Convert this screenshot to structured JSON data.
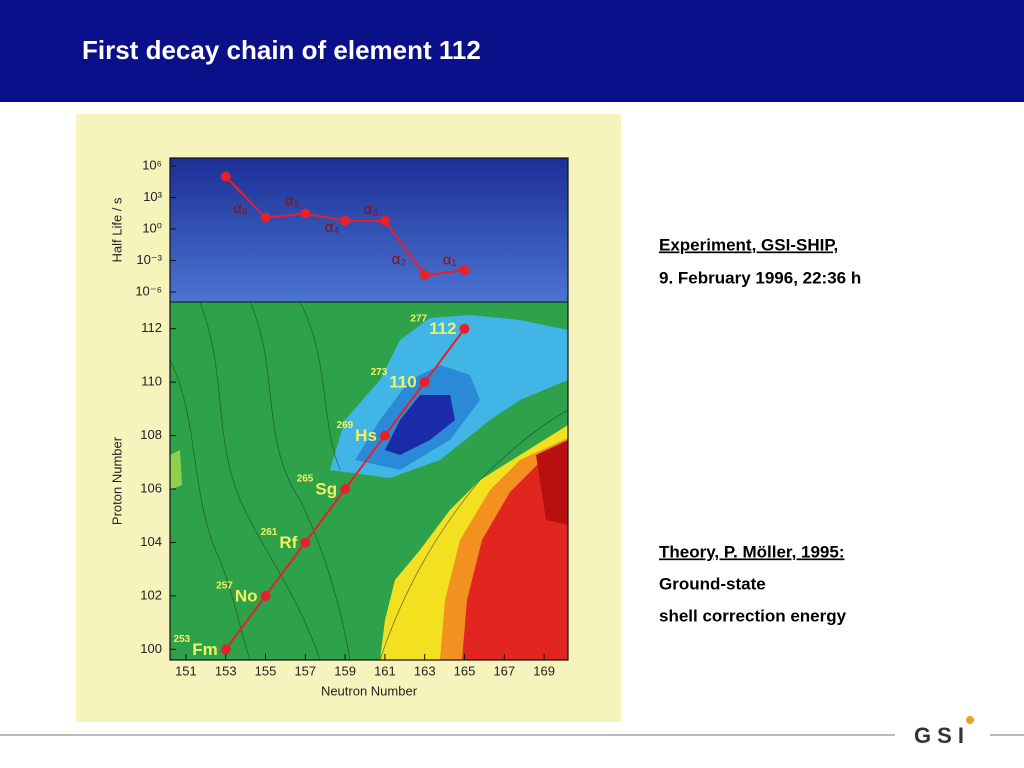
{
  "header": {
    "title": "First decay chain of element 112"
  },
  "chart_data": [
    {
      "type": "line",
      "y_label": "Half Life / s",
      "log_y": true,
      "ylim": [
        1.1e-07,
        5800000
      ],
      "yticks": [
        {
          "value": 1000000,
          "label": "10⁶"
        },
        {
          "value": 1000,
          "label": "10³"
        },
        {
          "value": 1,
          "label": "10⁰"
        },
        {
          "value": 0.001,
          "label": "10⁻³"
        },
        {
          "value": 1e-06,
          "label": "10⁻⁶"
        }
      ],
      "xlim": [
        150.2,
        170.2
      ],
      "x": [
        153,
        155,
        157,
        159,
        161,
        163,
        165
      ],
      "series": [
        {
          "color": "#e8202a",
          "values": [
            100000,
            12,
            30,
            6,
            6,
            4e-05,
            0.00012
          ]
        }
      ],
      "segment_labels": [
        "α₆",
        "α₅",
        "α₄",
        "α₃",
        "α₂",
        "α₁"
      ]
    },
    {
      "type": "chain",
      "x_label": "Neutron Number",
      "y_label": "Proton Number",
      "xlim": [
        150.2,
        170.2
      ],
      "ylim": [
        99.6,
        113
      ],
      "xticks": [
        151,
        153,
        155,
        157,
        159,
        161,
        163,
        165,
        167,
        169
      ],
      "yticks": [
        100,
        102,
        104,
        106,
        108,
        110,
        112
      ],
      "x": [
        153,
        155,
        157,
        159,
        161,
        163,
        165
      ],
      "series": [
        {
          "color": "#e8202a",
          "values": [
            100,
            102,
            104,
            106,
            108,
            110,
            112
          ]
        }
      ],
      "point_labels": [
        "Fm",
        "No",
        "Rf",
        "Sg",
        "Hs",
        "110",
        "112"
      ],
      "mass_labels": [
        "253",
        "257",
        "261",
        "265",
        "269",
        "273",
        "277"
      ]
    }
  ],
  "notes": {
    "experiment": {
      "heading": "Experiment, GSI-SHIP,",
      "date": "9. February 1996, 22:36 h"
    },
    "theory": {
      "heading": "Theory, P. Möller, 1995:",
      "lines": [
        "Ground-state",
        "shell correction energy"
      ]
    }
  },
  "logo": "GSI"
}
